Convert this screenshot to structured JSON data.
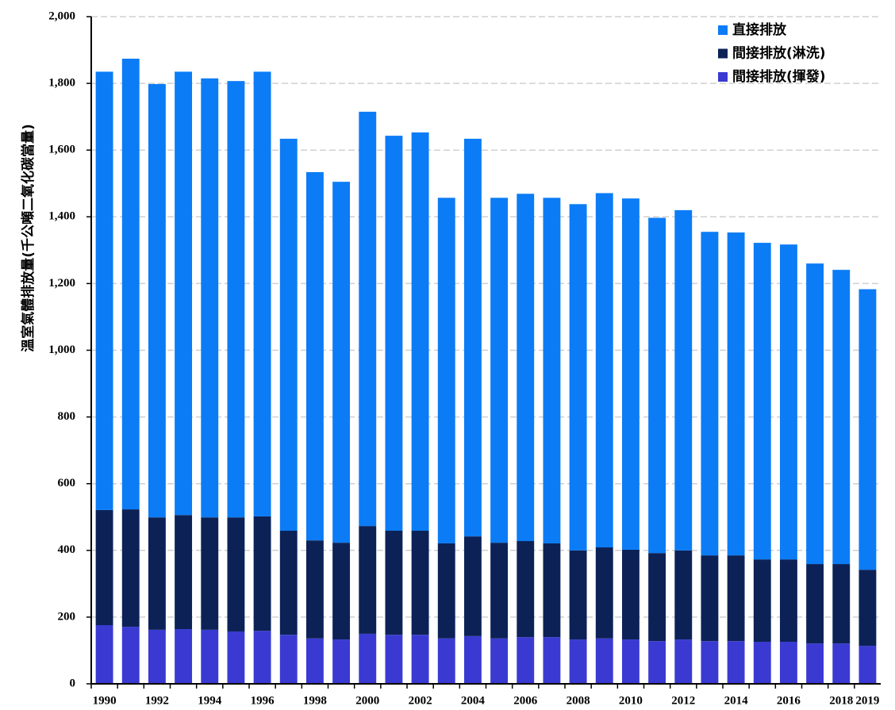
{
  "chart_data": {
    "type": "stacked-bar",
    "y_label": "溫室氣體排放量(千公噸二氧化碳當量)",
    "categories": [
      "1990",
      null,
      "1992",
      null,
      "1994",
      null,
      "1996",
      null,
      "1998",
      null,
      "2000",
      null,
      "2002",
      null,
      "2004",
      null,
      "2006",
      null,
      "2008",
      null,
      "2010",
      null,
      "2012",
      null,
      "2014",
      null,
      "2016",
      null,
      "2018",
      "2019"
    ],
    "series": [
      {
        "name": "間接排放(揮發)",
        "color": "#3a3ad2",
        "values": [
          176,
          171,
          162,
          164,
          162,
          157,
          159,
          147,
          136,
          133,
          150,
          147,
          147,
          136,
          143,
          136,
          140,
          140,
          133,
          136,
          133,
          128,
          133,
          128,
          128,
          126,
          126,
          121,
          121,
          114
        ]
      },
      {
        "name": "間接排放(淋洗)",
        "color": "#0c2257",
        "values": [
          345,
          352,
          337,
          342,
          337,
          342,
          343,
          312,
          294,
          290,
          323,
          312,
          312,
          285,
          299,
          287,
          288,
          281,
          267,
          273,
          269,
          264,
          267,
          257,
          257,
          247,
          247,
          238,
          238,
          228
        ]
      },
      {
        "name": "直接排放",
        "color": "#0b7cf6",
        "values": [
          1314,
          1351,
          1299,
          1329,
          1316,
          1308,
          1333,
          1175,
          1104,
          1082,
          1242,
          1184,
          1194,
          1036,
          1192,
          1034,
          1041,
          1036,
          1038,
          1062,
          1053,
          1005,
          1020,
          970,
          968,
          949,
          944,
          901,
          882,
          841
        ]
      }
    ],
    "ylim": [
      0,
      2000
    ],
    "yticks": [
      0,
      200,
      400,
      600,
      800,
      {
        "value": 1000,
        "label": "1,000"
      },
      {
        "value": 1200,
        "label": "1,200"
      },
      {
        "value": 1400,
        "label": "1,400"
      },
      {
        "value": 1600,
        "label": "1,600"
      },
      {
        "value": 1800,
        "label": "1,800"
      },
      {
        "value": 2000,
        "label": "2,000"
      }
    ],
    "grid": true,
    "legend": "top-right"
  }
}
